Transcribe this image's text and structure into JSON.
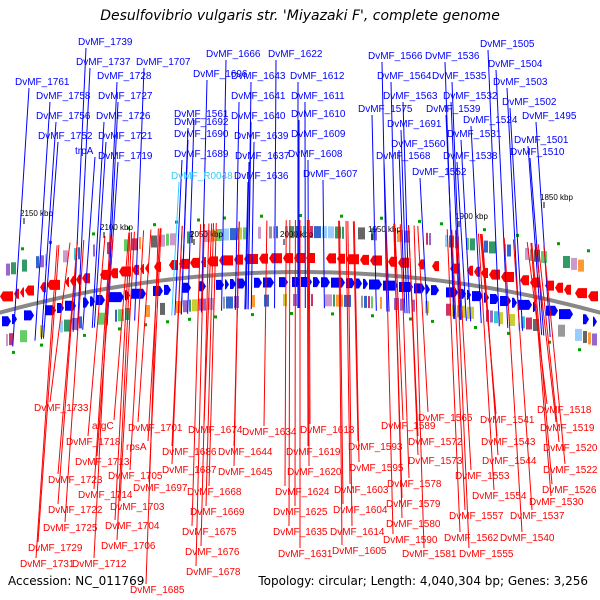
{
  "title": "Desulfovibrio vulgaris str. 'Miyazaki F', complete genome",
  "accession_text": "Accession: NC_011769",
  "summary_text": "Topology: circular; Length: 4,040,304 bp; Genes: 3,256",
  "colors": {
    "forward": "#0000ff",
    "reverse": "#ff0000",
    "rna": "#33ccff",
    "backbone": "#888888",
    "ticks": "#00a000"
  },
  "kbp_ticks": [
    "2150 kbp",
    "2100 kbp",
    "2050 kbp",
    "2000 kbp",
    "1950 kbp",
    "1900 kbp",
    "1850 kbp"
  ],
  "forward_genes": [
    "DvMF_1739",
    "DvMF_1737",
    "DvMF_1728",
    "DvMF_1707",
    "DvMF_1696",
    "DvMF_1666",
    "DvMF_1622",
    "DvMF_1566",
    "DvMF_1536",
    "DvMF_1505",
    "DvMF_1761",
    "DvMF_1643",
    "DvMF_1612",
    "DvMF_1564",
    "DvMF_1535",
    "DvMF_1504",
    "DvMF_1758",
    "DvMF_1727",
    "DvMF_1641",
    "DvMF_1611",
    "DvMF_1563",
    "DvMF_1532",
    "DvMF_1503",
    "DvMF_1756",
    "DvMF_1726",
    "DvMF_1692",
    "DvMF_1640",
    "DvMF_1610",
    "DvMF_1575",
    "DvMF_1539",
    "DvMF_1502",
    "DvMF_1691",
    "DvMF_1561",
    "DvMF_1524",
    "DvMF_1495",
    "DvMF_1752",
    "DvMF_1721",
    "DvMF_1690",
    "DvMF_1639",
    "DvMF_1609",
    "DvMF_1531",
    "trpA",
    "DvMF_1560",
    "DvMF_1501",
    "DvMF_1719",
    "DvMF_1689",
    "DvMF_1637",
    "DvMF_1608",
    "DvMF_1568",
    "DvMF_1538",
    "DvMF_1510",
    "DvMF_R0048",
    "DvMF_1636",
    "DvMF_1607",
    "DvMF_1552"
  ],
  "reverse_genes": [
    "DvMF_1518",
    "DvMF_1733",
    "DvMF_1589",
    "DvMF_1565",
    "DvMF_1541",
    "argC",
    "DvMF_1701",
    "DvMF_1674",
    "DvMF_1634",
    "DvMF_1613",
    "DvMF_1519",
    "DvMF_1718",
    "DvMF_1572",
    "DvMF_1543",
    "rpsA",
    "DvMF_1686",
    "DvMF_1644",
    "DvMF_1619",
    "DvMF_1593",
    "DvMF_1520",
    "DvMF_1713",
    "DvMF_1573",
    "DvMF_1544",
    "DvMF_1705",
    "DvMF_1687",
    "DvMF_1645",
    "DvMF_1620",
    "DvMF_1595",
    "DvMF_1553",
    "DvMF_1522",
    "DvMF_1723",
    "DvMF_1697",
    "DvMF_1578",
    "DvMF_1526",
    "DvMF_1714",
    "DvMF_1668",
    "DvMF_1624",
    "DvMF_1603",
    "DvMF_1554",
    "DvMF_1703",
    "DvMF_1579",
    "DvMF_1530",
    "DvMF_1722",
    "DvMF_1669",
    "DvMF_1625",
    "DvMF_1604",
    "DvMF_1557",
    "DvMF_1537",
    "DvMF_1704",
    "DvMF_1580",
    "DvMF_1725",
    "DvMF_1675",
    "DvMF_1635",
    "DvMF_1614",
    "DvMF_1590",
    "DvMF_1562",
    "DvMF_1540",
    "DvMF_1729",
    "DvMF_1706",
    "DvMF_1581",
    "DvMF_1555",
    "DvMF_1676",
    "DvMF_1631",
    "DvMF_1605",
    "DvMF_1731",
    "DvMF_1712",
    "DvMF_1678",
    "DvMF_1685"
  ]
}
